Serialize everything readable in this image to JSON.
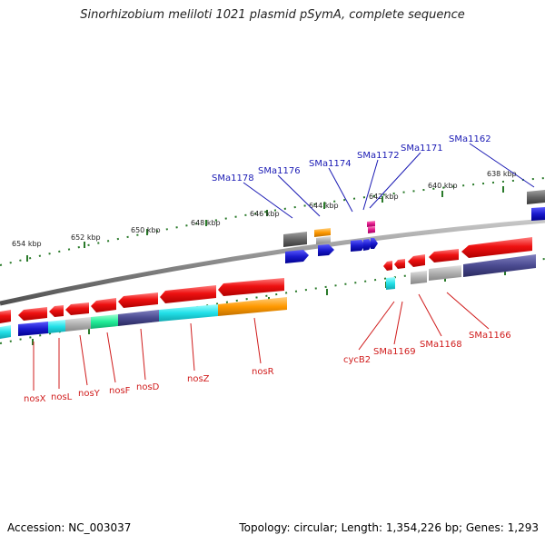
{
  "title": "Sinorhizobium meliloti 1021 plasmid pSymA, complete sequence",
  "footer": {
    "accession": "Accession: NC_003037",
    "summary": "Topology: circular; Length: 1,354,226 bp; Genes: 1,293"
  },
  "kbp_labels": [
    "654 kbp",
    "652 kbp",
    "650 kbp",
    "648 kbp",
    "646 kbp",
    "644 kbp",
    "642 kbp",
    "640 kbp",
    "638 kbp"
  ],
  "top_genes": [
    "SMa1178",
    "SMa1176",
    "SMa1174",
    "SMa1172",
    "SMa1171",
    "SMa1162"
  ],
  "bottom_genes": [
    "nosX",
    "nosL",
    "nosY",
    "nosF",
    "nosD",
    "nosZ",
    "nosR",
    "cycB2",
    "SMa1169",
    "SMa1168",
    "SMa1166"
  ],
  "colors": {
    "backbone": "#8a8a8a",
    "gene_red": "#ee1111",
    "blue": "#1a1acc",
    "cyan": "#22e0e8",
    "grey": "#b0b0b0",
    "dark_grey": "#666666",
    "green": "#22ee99",
    "slate": "#4a4a90",
    "orange": "#ff9900",
    "magenta": "#e0188a",
    "tick_green": "#2a7a2a",
    "label_blue": "#1a1ab4",
    "label_red": "#d01c1c"
  }
}
